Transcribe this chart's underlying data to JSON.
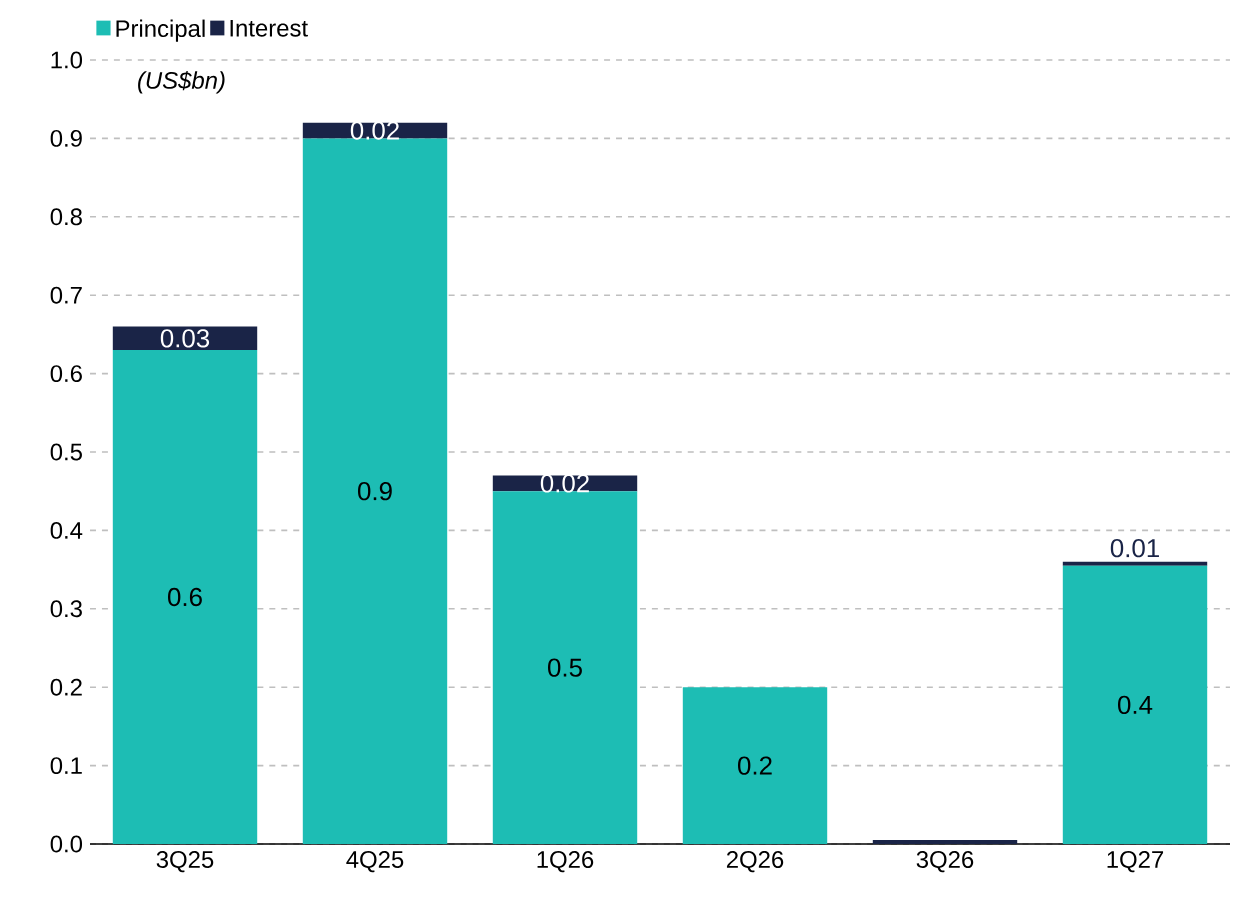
{
  "chart_data": {
    "type": "bar",
    "stacked": true,
    "categories": [
      "3Q25",
      "4Q25",
      "1Q26",
      "2Q26",
      "3Q26",
      "1Q27"
    ],
    "series": [
      {
        "name": "Principal",
        "color": "#1dbdb4",
        "values": [
          0.63,
          0.9,
          0.45,
          0.2,
          0,
          0.355
        ],
        "value_labels": [
          "0.6",
          "0.9",
          "0.5",
          "0.2",
          null,
          "0.4"
        ]
      },
      {
        "name": "Interest",
        "color": "#1a2447",
        "values": [
          0.03,
          0.02,
          0.02,
          0,
          0.005,
          0.005
        ],
        "value_labels": [
          "0.03",
          "0.02",
          "0.02",
          null,
          null,
          "0.01"
        ]
      }
    ],
    "ylim": [
      0,
      1.0
    ],
    "yticks": [
      {
        "value": 0,
        "label": "0.0"
      },
      0.1,
      0.2,
      0.3,
      0.4,
      0.5,
      0.6,
      0.7,
      0.8,
      0.9,
      {
        "value": 1.0,
        "label": "1.0"
      }
    ],
    "grid": "y",
    "legend": "top left",
    "annotations": [
      "(US$bn)"
    ]
  }
}
